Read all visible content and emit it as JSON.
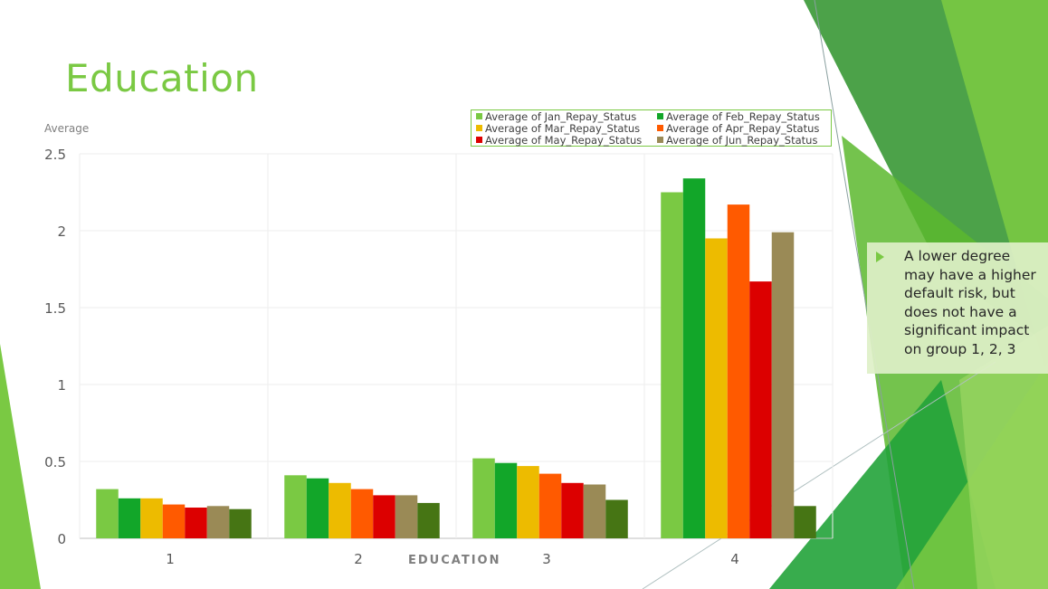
{
  "slide": {
    "title": "Education",
    "callout_text": "A lower degree may have a higher default risk, but does not have a significant impact on group 1, 2, 3",
    "bullet_icon": "triangle-bullet-icon",
    "accent_color": "#7AC943"
  },
  "chart_data": {
    "type": "bar",
    "title": "",
    "xlabel": "EDUCATION",
    "ylabel": "Average",
    "ylim": [
      0,
      2.5
    ],
    "yticks": [
      "0",
      "0.5",
      "1",
      "1.5",
      "2",
      "2.5"
    ],
    "categories": [
      "1",
      "2",
      "3",
      "4"
    ],
    "grid": true,
    "legend_position": "top-right",
    "series": [
      {
        "name": "Average of Jan_Repay_Status",
        "color": "#7AC943",
        "values": [
          0.32,
          0.41,
          0.52,
          2.25
        ]
      },
      {
        "name": "Average of Feb_Repay_Status",
        "color": "#12A629",
        "values": [
          0.26,
          0.39,
          0.49,
          2.34
        ]
      },
      {
        "name": "Average of Mar_Repay_Status",
        "color": "#EDBB00",
        "values": [
          0.26,
          0.36,
          0.47,
          1.95
        ]
      },
      {
        "name": "Average of Apr_Repay_Status",
        "color": "#FF5A00",
        "values": [
          0.22,
          0.32,
          0.42,
          2.17
        ]
      },
      {
        "name": "Average of May_Repay_Status",
        "color": "#DC0000",
        "values": [
          0.2,
          0.28,
          0.36,
          1.67
        ]
      },
      {
        "name": "Average of Jun_Repay_Status",
        "color": "#9A8A56",
        "values": [
          0.21,
          0.28,
          0.35,
          1.99
        ]
      },
      {
        "name": "",
        "color": "#467514",
        "values": [
          0.19,
          0.23,
          0.25,
          0.21
        ]
      }
    ]
  }
}
